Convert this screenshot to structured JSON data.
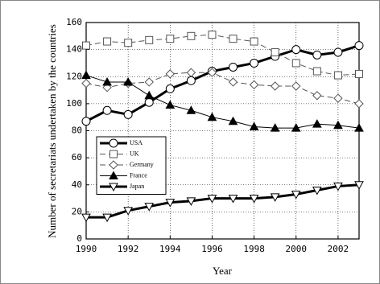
{
  "chart_data": {
    "type": "line",
    "x_label": "Year",
    "y_label": "Number of secretariats undertaken by the countries",
    "x": [
      1990,
      1991,
      1992,
      1993,
      1994,
      1995,
      1996,
      1997,
      1998,
      1999,
      2000,
      2001,
      2002,
      2003
    ],
    "xlim": [
      1990,
      2003
    ],
    "xticks": [
      1990,
      1992,
      1994,
      1996,
      1998,
      2000,
      2002
    ],
    "ylim": [
      0,
      160
    ],
    "yticks": [
      0,
      20,
      40,
      60,
      80,
      100,
      120,
      140,
      160
    ],
    "grid": true,
    "legend": "lower-left",
    "series": [
      {
        "name": "USA",
        "color": "#000000",
        "values": [
          87,
          95,
          92,
          101,
          111,
          117,
          124,
          127,
          130,
          135,
          140,
          136,
          138,
          143
        ]
      },
      {
        "name": "UK",
        "color": "#555555",
        "values": [
          143,
          146,
          145,
          147,
          148,
          150,
          151,
          148,
          146,
          138,
          130,
          124,
          121,
          122
        ]
      },
      {
        "name": "Germany",
        "color": "#555555",
        "values": [
          115,
          112,
          115,
          116,
          122,
          123,
          123,
          116,
          114,
          113,
          113,
          106,
          104,
          100
        ]
      },
      {
        "name": "France",
        "color": "#000000",
        "values": [
          121,
          116,
          116,
          106,
          99,
          95,
          90,
          87,
          83,
          82,
          82,
          85,
          84,
          82
        ]
      },
      {
        "name": "Japan",
        "color": "#000000",
        "values": [
          16,
          16,
          21,
          24,
          27,
          28,
          30,
          30,
          30,
          31,
          33,
          36,
          39,
          40
        ]
      }
    ]
  }
}
